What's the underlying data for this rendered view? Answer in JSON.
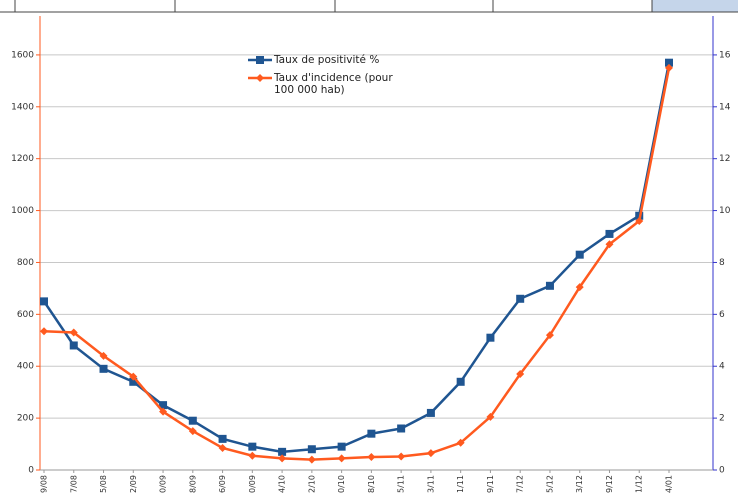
{
  "chart_data": {
    "type": "line",
    "categories": [
      "9/08",
      "7/08",
      "5/08",
      "2/09",
      "0/09",
      "8/09",
      "6/09",
      "0/09",
      "4/10",
      "2/10",
      "0/10",
      "8/10",
      "5/11",
      "3/11",
      "1/11",
      "9/11",
      "7/12",
      "5/12",
      "3/12",
      "9/12",
      "1/12",
      "4/01"
    ],
    "series": [
      {
        "name": "Taux de positivité %",
        "color": "#1f5591",
        "marker": "square",
        "axis": "y2",
        "values": [
          6.5,
          4.8,
          3.9,
          3.4,
          2.5,
          1.9,
          1.2,
          0.9,
          0.7,
          0.8,
          0.9,
          1.4,
          1.6,
          2.2,
          3.4,
          5.1,
          6.6,
          7.1,
          8.3,
          9.1,
          9.8,
          15.7
        ]
      },
      {
        "name": "Taux d'incidence (pour 100 000 hab)",
        "color": "#ff5a1f",
        "marker": "diamond",
        "values": [
          535,
          530,
          440,
          360,
          225,
          150,
          85,
          55,
          45,
          40,
          45,
          50,
          52,
          65,
          105,
          205,
          370,
          520,
          705,
          870,
          960,
          1550
        ]
      }
    ],
    "ylim": [
      0,
      1750
    ],
    "yticks": [
      0,
      200,
      400,
      600,
      800,
      1000,
      1200,
      1400,
      1600
    ],
    "y2lim": [
      0,
      17.5
    ],
    "y2ticks": [
      0,
      2,
      4,
      6,
      8,
      10,
      12,
      14,
      16
    ],
    "grid": true,
    "y_axis_color": "#ff5a1f",
    "y2_axis_color": "#3333cc"
  }
}
